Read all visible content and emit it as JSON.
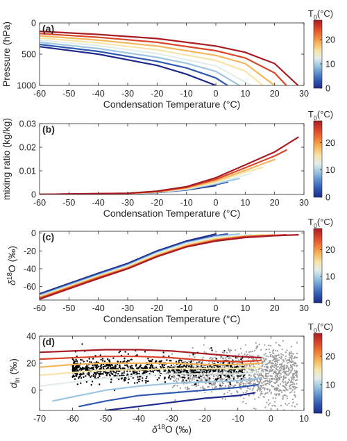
{
  "colorbar": {
    "title": "T",
    "title_sub": "0",
    "title_unit": "(°C)",
    "ticks": [
      "0",
      "10",
      "20"
    ],
    "range": [
      0,
      28
    ],
    "colors": [
      "#1f2a8c",
      "#2f58b0",
      "#5a8fcc",
      "#9cc6e2",
      "#e3edea",
      "#f6e5a6",
      "#f7b55a",
      "#ef7a36",
      "#d9462a",
      "#a81c24"
    ]
  },
  "chart_data": [
    {
      "panel": "(a)",
      "type": "line",
      "xlabel": "Condensation Temperature (°C)",
      "ylabel": "Pressure (hPa)",
      "xlim": [
        -60,
        30
      ],
      "ylim": [
        1000,
        0
      ],
      "y_reversed": true,
      "xticks": [
        -60,
        -50,
        -40,
        -30,
        -20,
        -10,
        0,
        10,
        20,
        30
      ],
      "yticks": [
        0,
        500,
        1000
      ],
      "series_key": "T0",
      "series": [
        {
          "T0": 0,
          "x": [
            -60,
            -40,
            -20,
            -10,
            0
          ],
          "y": [
            380,
            500,
            680,
            820,
            1000
          ]
        },
        {
          "T0": 4,
          "x": [
            -60,
            -40,
            -20,
            -10,
            0,
            4
          ],
          "y": [
            345,
            455,
            615,
            720,
            880,
            1000
          ]
        },
        {
          "T0": 8,
          "x": [
            -60,
            -40,
            -20,
            -10,
            0,
            8
          ],
          "y": [
            310,
            410,
            550,
            645,
            775,
            1000
          ]
        },
        {
          "T0": 12,
          "x": [
            -60,
            -40,
            -20,
            0,
            12
          ],
          "y": [
            275,
            365,
            490,
            685,
            1000
          ]
        },
        {
          "T0": 16,
          "x": [
            -60,
            -40,
            -20,
            0,
            10,
            16
          ],
          "y": [
            240,
            320,
            430,
            600,
            770,
            1000
          ]
        },
        {
          "T0": 20,
          "x": [
            -60,
            -40,
            -20,
            0,
            10,
            20
          ],
          "y": [
            205,
            275,
            370,
            520,
            650,
            1000
          ]
        },
        {
          "T0": 24,
          "x": [
            -60,
            -40,
            -20,
            0,
            10,
            20,
            24
          ],
          "y": [
            170,
            230,
            310,
            445,
            560,
            800,
            1000
          ]
        },
        {
          "T0": 28,
          "x": [
            -60,
            -40,
            -20,
            0,
            10,
            20,
            28
          ],
          "y": [
            135,
            185,
            250,
            370,
            470,
            650,
            1000
          ]
        }
      ]
    },
    {
      "panel": "(b)",
      "type": "line",
      "xlabel": "Condensation Temperature (°C)",
      "ylabel": "mixing ratio (kg/kg)",
      "xlim": [
        -60,
        30
      ],
      "ylim": [
        0,
        0.03
      ],
      "xticks": [
        -60,
        -50,
        -40,
        -30,
        -20,
        -10,
        0,
        10,
        20,
        30
      ],
      "yticks": [
        0,
        0.01,
        0.02,
        0.03
      ],
      "series_key": "T0",
      "series": [
        {
          "T0": 0,
          "x": [
            -60,
            -30,
            -20,
            -10,
            0
          ],
          "y": [
            2e-05,
            0.0003,
            0.0008,
            0.0019,
            0.0038
          ]
        },
        {
          "T0": 4,
          "x": [
            -60,
            -30,
            -20,
            -10,
            0,
            4
          ],
          "y": [
            2e-05,
            0.0003,
            0.0008,
            0.002,
            0.0042,
            0.0052
          ]
        },
        {
          "T0": 8,
          "x": [
            -60,
            -30,
            -20,
            -10,
            0,
            8
          ],
          "y": [
            2e-05,
            0.0003,
            0.0009,
            0.0021,
            0.0045,
            0.0068
          ]
        },
        {
          "T0": 12,
          "x": [
            -60,
            -30,
            -20,
            -10,
            0,
            12
          ],
          "y": [
            2e-05,
            0.0004,
            0.001,
            0.0023,
            0.0049,
            0.0089
          ]
        },
        {
          "T0": 16,
          "x": [
            -60,
            -30,
            -20,
            -10,
            0,
            10,
            16
          ],
          "y": [
            2e-05,
            0.0004,
            0.001,
            0.0025,
            0.0053,
            0.0094,
            0.0115
          ]
        },
        {
          "T0": 20,
          "x": [
            -60,
            -30,
            -20,
            -10,
            0,
            10,
            20
          ],
          "y": [
            2e-05,
            0.0004,
            0.0011,
            0.0027,
            0.0058,
            0.0102,
            0.0148
          ]
        },
        {
          "T0": 24,
          "x": [
            -60,
            -30,
            -20,
            -10,
            0,
            10,
            20,
            24
          ],
          "y": [
            2e-05,
            0.0005,
            0.0012,
            0.003,
            0.0064,
            0.0113,
            0.0163,
            0.0188
          ]
        },
        {
          "T0": 28,
          "x": [
            -60,
            -30,
            -20,
            -10,
            0,
            10,
            20,
            28
          ],
          "y": [
            2e-05,
            0.0005,
            0.0014,
            0.0033,
            0.0071,
            0.0125,
            0.018,
            0.0242
          ]
        }
      ]
    },
    {
      "panel": "(c)",
      "type": "line",
      "xlabel": "Condensation Temperature (°C)",
      "ylabel": "δ18O (‰)",
      "xlim": [
        -60,
        30
      ],
      "ylim": [
        -75,
        2
      ],
      "xticks": [
        -60,
        -50,
        -40,
        -30,
        -20,
        -10,
        0,
        10,
        20,
        30
      ],
      "yticks": [
        -60,
        -40,
        -20,
        0
      ],
      "series_key": "T0",
      "series": [
        {
          "T0": 0,
          "x": [
            -60,
            -40,
            -30,
            -20,
            -10,
            0
          ],
          "y": [
            -68,
            -45,
            -34,
            -20,
            -9,
            -1
          ]
        },
        {
          "T0": 4,
          "x": [
            -60,
            -40,
            -30,
            -20,
            -10,
            0,
            4
          ],
          "y": [
            -69,
            -46,
            -35,
            -21,
            -10,
            -3,
            -1
          ]
        },
        {
          "T0": 8,
          "x": [
            -60,
            -40,
            -30,
            -20,
            -10,
            0,
            8
          ],
          "y": [
            -70,
            -47,
            -36,
            -22,
            -11,
            -4,
            -1
          ]
        },
        {
          "T0": 12,
          "x": [
            -60,
            -40,
            -30,
            -20,
            -10,
            0,
            12
          ],
          "y": [
            -71,
            -48,
            -37,
            -23,
            -12,
            -5,
            -1.5
          ]
        },
        {
          "T0": 16,
          "x": [
            -60,
            -40,
            -30,
            -20,
            -10,
            0,
            16
          ],
          "y": [
            -71.5,
            -48.5,
            -38,
            -24,
            -13,
            -6,
            -2
          ]
        },
        {
          "T0": 20,
          "x": [
            -60,
            -40,
            -30,
            -20,
            -10,
            0,
            10,
            20
          ],
          "y": [
            -72,
            -49,
            -38.5,
            -25,
            -14,
            -7,
            -3.5,
            -2
          ]
        },
        {
          "T0": 24,
          "x": [
            -60,
            -40,
            -30,
            -20,
            -10,
            0,
            10,
            24
          ],
          "y": [
            -73,
            -50,
            -39.5,
            -26,
            -15,
            -8,
            -4,
            -2
          ]
        },
        {
          "T0": 28,
          "x": [
            -60,
            -40,
            -30,
            -20,
            -10,
            0,
            10,
            20,
            28
          ],
          "y": [
            -74,
            -51,
            -40,
            -26.5,
            -15.5,
            -9,
            -5,
            -3,
            -2
          ]
        }
      ]
    },
    {
      "panel": "(d)",
      "type": "scatter",
      "xlabel": "δ18O (‰)",
      "ylabel": "dln (‰)",
      "xlim": [
        -70,
        10
      ],
      "ylim": [
        -15,
        40
      ],
      "xticks": [
        -70,
        -60,
        -50,
        -40,
        -30,
        -20,
        -10,
        0,
        10
      ],
      "yticks": [
        0,
        20,
        40
      ],
      "series_key": "T0",
      "series": [
        {
          "T0": 0,
          "x": [
            -50,
            -40,
            -30,
            -20,
            -10,
            -5
          ],
          "y": [
            -15,
            -12,
            -9,
            -6,
            -4,
            -2
          ]
        },
        {
          "T0": 4,
          "x": [
            -58,
            -50,
            -40,
            -30,
            -20,
            -10,
            -4
          ],
          "y": [
            -12,
            -8,
            -4,
            -2,
            0,
            2,
            4
          ]
        },
        {
          "T0": 8,
          "x": [
            -66,
            -60,
            -50,
            -40,
            -30,
            -20,
            -10,
            -3
          ],
          "y": [
            -8,
            -5,
            0,
            3,
            5,
            6,
            7,
            9
          ]
        },
        {
          "T0": 12,
          "x": [
            -70,
            -60,
            -50,
            -40,
            -30,
            -20,
            -10,
            -3
          ],
          "y": [
            3,
            6,
            9,
            11,
            12,
            12,
            12,
            13
          ]
        },
        {
          "T0": 16,
          "x": [
            -70,
            -60,
            -50,
            -40,
            -30,
            -20,
            -10,
            -3
          ],
          "y": [
            11,
            13,
            15,
            15,
            16,
            16,
            16,
            17
          ]
        },
        {
          "T0": 20,
          "x": [
            -70,
            -60,
            -50,
            -40,
            -30,
            -20,
            -10,
            -3
          ],
          "y": [
            17,
            19,
            20,
            20,
            20,
            19,
            19,
            20
          ]
        },
        {
          "T0": 24,
          "x": [
            -70,
            -60,
            -50,
            -40,
            -30,
            -20,
            -10,
            -3
          ],
          "y": [
            23,
            24,
            25,
            25,
            24,
            22,
            21,
            22
          ]
        },
        {
          "T0": 28,
          "x": [
            -70,
            -60,
            -50,
            -40,
            -30,
            -20,
            -10,
            -3
          ],
          "y": [
            28,
            29,
            30,
            30,
            29,
            27,
            25,
            24
          ]
        }
      ],
      "scatter_groups": [
        {
          "color": "#9a9a9a",
          "x_range": [
            -30,
            8
          ],
          "y_center": 12,
          "y_spread": 9,
          "count": 1400
        },
        {
          "color": "#000000",
          "x_range": [
            -60,
            -8
          ],
          "y_center": 15,
          "y_spread": 4,
          "count": 900
        }
      ]
    }
  ]
}
